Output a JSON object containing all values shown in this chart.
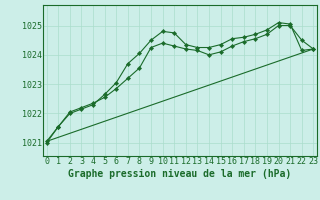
{
  "bg_color": "#cceee8",
  "grid_color": "#aaddcc",
  "line_color": "#1a6b2a",
  "xlabel": "Graphe pression niveau de la mer (hPa)",
  "xlabel_fontsize": 7,
  "tick_fontsize": 6,
  "ylabel_ticks": [
    1021,
    1022,
    1023,
    1024,
    1025
  ],
  "xlim": [
    -0.3,
    23.3
  ],
  "ylim": [
    1020.55,
    1025.7
  ],
  "line1_x": [
    0,
    1,
    2,
    3,
    4,
    5,
    6,
    7,
    8,
    9,
    10,
    11,
    12,
    13,
    14,
    15,
    16,
    17,
    18,
    19,
    20,
    21,
    22,
    23
  ],
  "line1_y": [
    1021.0,
    1021.55,
    1022.0,
    1022.15,
    1022.3,
    1022.65,
    1023.05,
    1023.7,
    1024.05,
    1024.5,
    1024.8,
    1024.75,
    1024.35,
    1024.25,
    1024.25,
    1024.35,
    1024.55,
    1024.6,
    1024.7,
    1024.85,
    1025.1,
    1025.05,
    1024.15,
    1024.2
  ],
  "line2_x": [
    0,
    1,
    2,
    3,
    4,
    5,
    6,
    7,
    8,
    9,
    10,
    11,
    12,
    13,
    14,
    15,
    16,
    17,
    18,
    19,
    20,
    21,
    22,
    23
  ],
  "line2_y": [
    1021.05,
    1021.55,
    1022.05,
    1022.2,
    1022.35,
    1022.55,
    1022.85,
    1023.2,
    1023.55,
    1024.25,
    1024.4,
    1024.3,
    1024.2,
    1024.15,
    1024.0,
    1024.1,
    1024.3,
    1024.45,
    1024.55,
    1024.7,
    1025.0,
    1025.0,
    1024.5,
    1024.2
  ],
  "line3_x": [
    0,
    23
  ],
  "line3_y": [
    1021.05,
    1024.2
  ]
}
